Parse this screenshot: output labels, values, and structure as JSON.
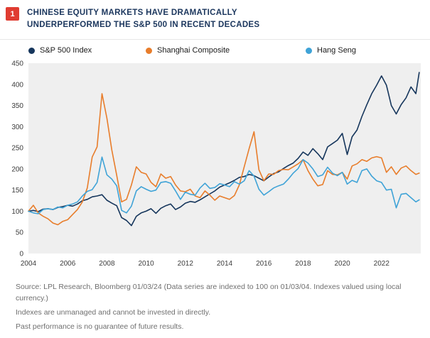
{
  "header": {
    "badge": "1",
    "title_line1": "CHINESE EQUITY MARKETS HAVE DRAMATICALLY",
    "title_line2": "UNDERPERFORMED THE S&P 500 IN RECENT DECADES"
  },
  "legend": {
    "items": [
      {
        "label": "S&P 500 Index",
        "color": "#16365C"
      },
      {
        "label": "Shanghai Composite",
        "color": "#E87D2B"
      },
      {
        "label": "Hang Seng",
        "color": "#3FA3D7"
      }
    ]
  },
  "chart_data": {
    "type": "line",
    "title": "Chinese equity markets have dramatically underperformed the S&P 500 in recent decades",
    "xlabel": "",
    "ylabel": "",
    "xlim": [
      2004,
      2024
    ],
    "ylim": [
      0,
      450
    ],
    "x_ticks": [
      2004,
      2006,
      2008,
      2010,
      2012,
      2014,
      2016,
      2018,
      2020,
      2022
    ],
    "y_ticks": [
      450,
      400,
      350,
      300,
      250,
      200,
      150,
      100,
      50,
      0
    ],
    "grid": false,
    "plot_background": "#EFEFEF",
    "legend_position": "top",
    "note": "Data series are indexed to 100 on 01/03/04",
    "x": [
      2004,
      2004.25,
      2004.5,
      2004.75,
      2005,
      2005.25,
      2005.5,
      2005.75,
      2006,
      2006.25,
      2006.5,
      2006.75,
      2007,
      2007.25,
      2007.5,
      2007.75,
      2008,
      2008.25,
      2008.5,
      2008.75,
      2009,
      2009.25,
      2009.5,
      2009.75,
      2010,
      2010.25,
      2010.5,
      2010.75,
      2011,
      2011.25,
      2011.5,
      2011.75,
      2012,
      2012.25,
      2012.5,
      2012.75,
      2013,
      2013.25,
      2013.5,
      2013.75,
      2014,
      2014.25,
      2014.5,
      2014.75,
      2015,
      2015.25,
      2015.5,
      2015.75,
      2016,
      2016.25,
      2016.5,
      2016.75,
      2017,
      2017.25,
      2017.5,
      2017.75,
      2018,
      2018.25,
      2018.5,
      2018.75,
      2019,
      2019.25,
      2019.5,
      2019.75,
      2020,
      2020.25,
      2020.5,
      2020.75,
      2021,
      2021.25,
      2021.5,
      2021.75,
      2022,
      2022.25,
      2022.5,
      2022.75,
      2023,
      2023.25,
      2023.5,
      2023.75,
      2023.92
    ],
    "series": [
      {
        "name": "S&P 500 Index",
        "color": "#16365C",
        "values": [
          100,
          102,
          99,
          105,
          106,
          104,
          109,
          111,
          114,
          112,
          117,
          125,
          128,
          134,
          136,
          139,
          126,
          119,
          113,
          85,
          78,
          66,
          88,
          96,
          100,
          106,
          95,
          107,
          113,
          117,
          104,
          110,
          119,
          123,
          121,
          127,
          134,
          141,
          148,
          157,
          162,
          167,
          173,
          180,
          182,
          187,
          184,
          178,
          172,
          181,
          189,
          193,
          201,
          208,
          214,
          225,
          240,
          232,
          248,
          236,
          222,
          252,
          260,
          268,
          284,
          234,
          276,
          292,
          324,
          352,
          378,
          398,
          420,
          398,
          350,
          330,
          352,
          368,
          394,
          378,
          428
        ]
      },
      {
        "name": "Shanghai Composite",
        "color": "#E87D2B",
        "values": [
          100,
          114,
          96,
          88,
          82,
          72,
          68,
          76,
          80,
          92,
          104,
          122,
          155,
          228,
          252,
          378,
          320,
          245,
          185,
          122,
          128,
          162,
          205,
          192,
          188,
          168,
          158,
          188,
          178,
          182,
          162,
          148,
          146,
          152,
          136,
          132,
          148,
          138,
          126,
          136,
          132,
          128,
          137,
          162,
          205,
          248,
          288,
          198,
          172,
          188,
          187,
          196,
          199,
          198,
          205,
          212,
          222,
          196,
          176,
          160,
          163,
          196,
          187,
          186,
          192,
          176,
          207,
          212,
          222,
          218,
          226,
          229,
          226,
          192,
          205,
          187,
          202,
          207,
          196,
          187,
          190
        ]
      },
      {
        "name": "Hang Seng",
        "color": "#3FA3D7",
        "values": [
          100,
          96,
          94,
          104,
          106,
          104,
          110,
          108,
          114,
          117,
          122,
          136,
          147,
          151,
          168,
          228,
          186,
          176,
          160,
          102,
          96,
          112,
          148,
          158,
          152,
          147,
          150,
          168,
          170,
          166,
          148,
          128,
          145,
          140,
          138,
          155,
          166,
          154,
          156,
          165,
          162,
          158,
          170,
          164,
          172,
          196,
          183,
          152,
          138,
          146,
          155,
          160,
          164,
          176,
          190,
          201,
          222,
          214,
          200,
          182,
          186,
          204,
          190,
          184,
          192,
          164,
          173,
          168,
          196,
          200,
          183,
          172,
          168,
          150,
          152,
          108,
          140,
          142,
          132,
          122,
          127
        ]
      }
    ]
  },
  "footer": {
    "lines": [
      "Source: LPL Research, Bloomberg 01/03/24 (Data series are indexed to 100 on 01/03/04. Indexes valued using local currency.)",
      "Indexes are unmanaged and cannot be invested in directly.",
      "Past performance is no guarantee of future results."
    ]
  },
  "colors": {
    "badge_red": "#E03C31",
    "title_navy": "#1B365D",
    "axis_text": "#3C3C3C",
    "footnote_text": "#6F6F6F"
  }
}
